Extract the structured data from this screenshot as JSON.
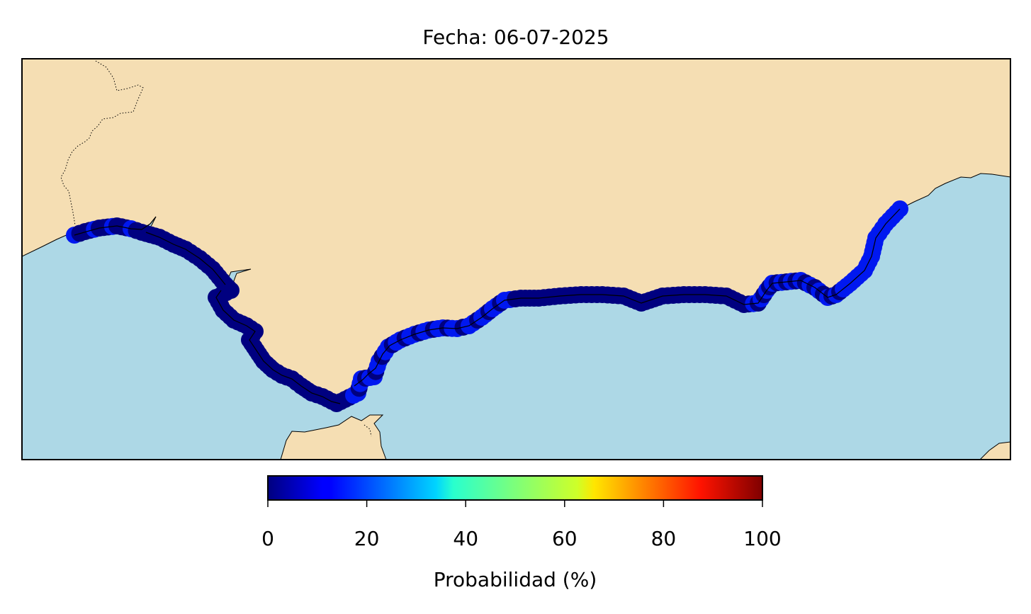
{
  "title": "Fecha: 06-07-2025",
  "colors": {
    "land": "#f5deb3",
    "sea": "#add8e6",
    "coastline": "#000000",
    "border": "#000000"
  },
  "colorbar": {
    "label": "Probabilidad (%)",
    "colormap": "jet",
    "min": 0,
    "max": 100,
    "ticks": [
      "0",
      "20",
      "40",
      "60",
      "80",
      "100"
    ],
    "orientation": "horizontal",
    "placement": "bottom"
  },
  "map": {
    "region": "Andalusian coast (Huelva – Cádiz – Strait of Gibraltar – Málaga – Almería)",
    "probability_range_shown": "approximately 0–15%",
    "marker_colors": [
      "dark-navy",
      "blue"
    ]
  }
}
